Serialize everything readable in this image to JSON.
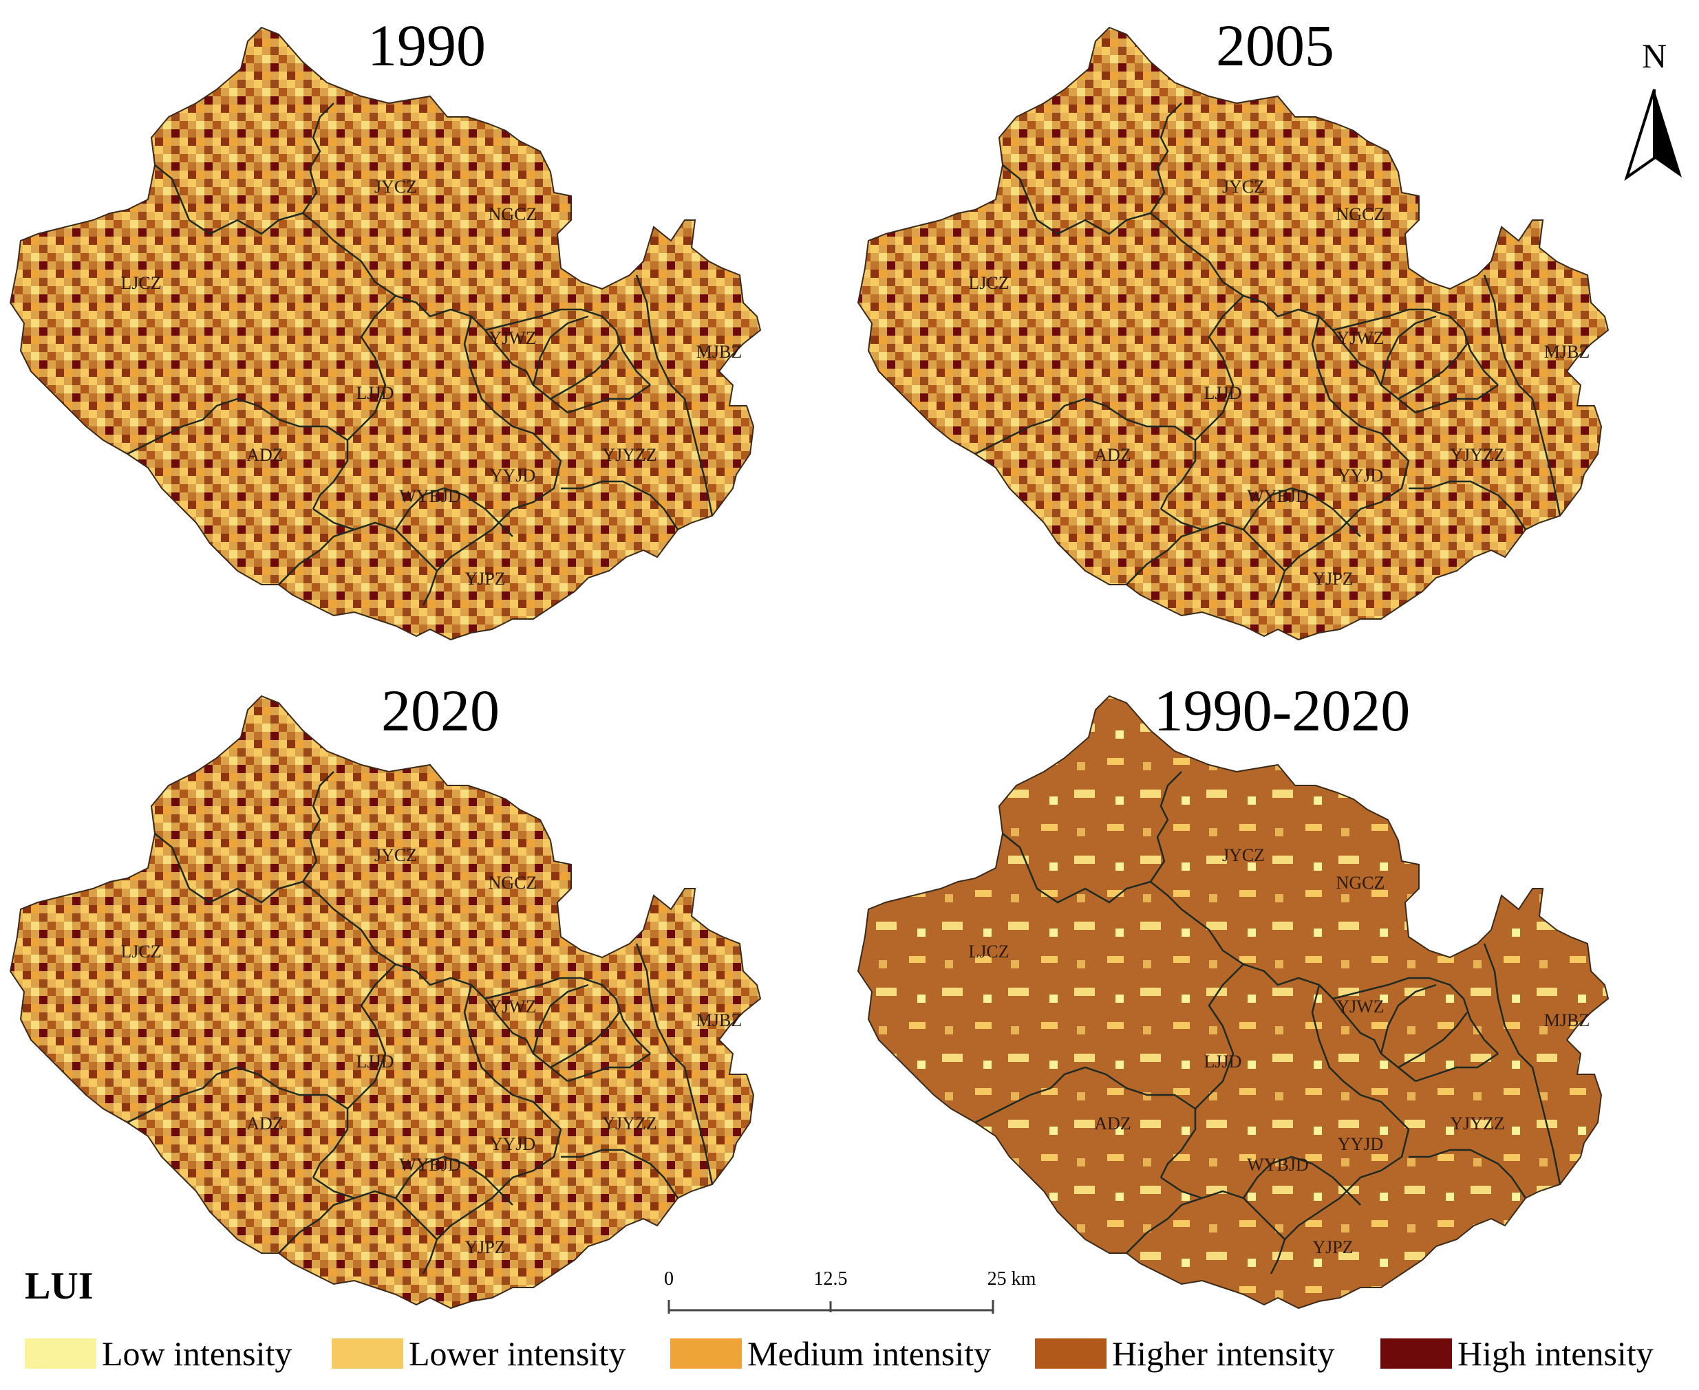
{
  "panels": [
    {
      "title": "1990",
      "scheme": "mixed"
    },
    {
      "title": "2005",
      "scheme": "mixed"
    },
    {
      "title": "2020",
      "scheme": "mixed"
    },
    {
      "title": "1990-2020",
      "scheme": "change"
    }
  ],
  "regions": [
    "JYCZ",
    "NGCZ",
    "LJCZ",
    "YJWZ",
    "MJBZ",
    "LJJD",
    "ADZ",
    "YJYZZ",
    "YYJD",
    "WYBJD",
    "YJPZ"
  ],
  "north_label": "N",
  "legend": {
    "title": "LUI",
    "classes": [
      {
        "label": "Low intensity",
        "color": "#fbf39b"
      },
      {
        "label": "Lower intensity",
        "color": "#f6c961"
      },
      {
        "label": "Medium intensity",
        "color": "#eea436"
      },
      {
        "label": "Higher intensity",
        "color": "#b0591a"
      },
      {
        "label": "High intensity",
        "color": "#6e0a0a"
      }
    ]
  },
  "scale_bar": {
    "ticks": [
      "0",
      "12.5",
      "25 km"
    ]
  }
}
